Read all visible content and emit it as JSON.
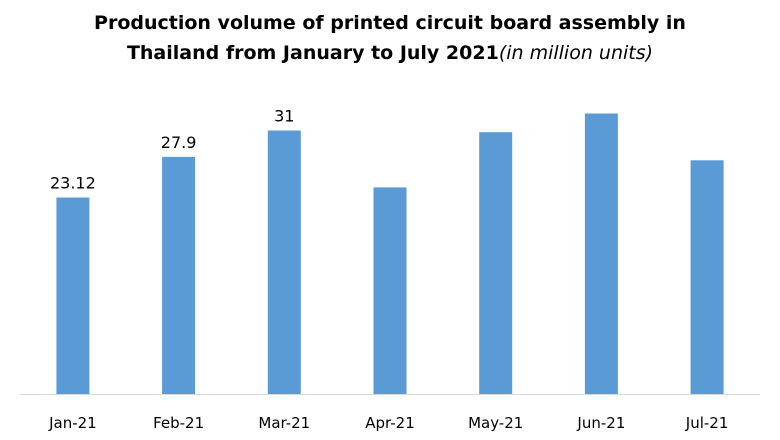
{
  "chart_data": {
    "type": "bar",
    "title": "Production volume of printed circuit board assembly in",
    "title_line2": "Thailand from January to July 2021",
    "title_unit": "(in million units)",
    "xlabel": "",
    "ylabel": "",
    "categories": [
      "Jan-21",
      "Feb-21",
      "Mar-21",
      "Apr-21",
      "May-21",
      "Jun-21",
      "Jul-21"
    ],
    "values": [
      23.12,
      27.9,
      31,
      24.3,
      30.8,
      33,
      27.5
    ],
    "data_labels": [
      "23.12",
      "27.9",
      "31",
      null,
      null,
      null,
      null
    ],
    "ylim": [
      0,
      36
    ],
    "grid": false,
    "legend": "none",
    "bar_color": "#5B9BD5",
    "axis_color": "#D9D9D9"
  }
}
